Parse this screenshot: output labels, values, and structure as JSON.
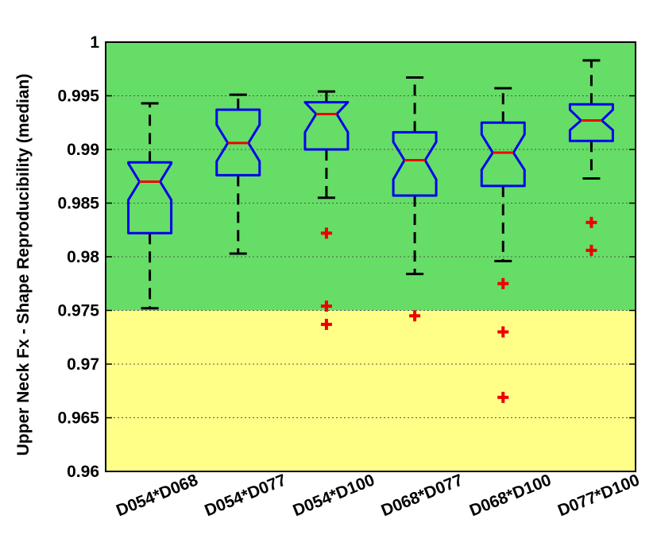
{
  "chart_data": {
    "type": "boxplot",
    "ylabel": "Upper Neck Fx - Shape Reproducibility (median)",
    "ylim": [
      0.96,
      1.0
    ],
    "yticks": [
      "0.96",
      "0.965",
      "0.97",
      "0.975",
      "0.98",
      "0.985",
      "0.99",
      "0.995",
      "1"
    ],
    "ytick_values": [
      0.96,
      0.965,
      0.97,
      0.975,
      0.98,
      0.985,
      0.99,
      0.995,
      1.0
    ],
    "grid": true,
    "notched": true,
    "bands": [
      {
        "from": 0.975,
        "to": 1.0,
        "color": "#66dd66"
      },
      {
        "from": 0.96,
        "to": 0.975,
        "color": "#ffff88"
      }
    ],
    "colors": {
      "box": "#0000ee",
      "median": "#ee0000",
      "whisker": "#000000",
      "outlier": "#ee0000"
    },
    "categories": [
      "D054*D068",
      "D054*D077",
      "D054*D100",
      "D068*D077",
      "D068*D100",
      "D077*D100"
    ],
    "boxes": [
      {
        "whisker_low": 0.9752,
        "q1": 0.9822,
        "median": 0.987,
        "q3": 0.9888,
        "whisker_high": 0.9943,
        "notch_low": 0.9853,
        "notch_high": 0.9887,
        "outliers": []
      },
      {
        "whisker_low": 0.9803,
        "q1": 0.9876,
        "median": 0.9906,
        "q3": 0.9937,
        "whisker_high": 0.9951,
        "notch_low": 0.9889,
        "notch_high": 0.9923,
        "outliers": []
      },
      {
        "whisker_low": 0.9855,
        "q1": 0.99,
        "median": 0.9933,
        "q3": 0.9944,
        "whisker_high": 0.9954,
        "notch_low": 0.9916,
        "notch_high": 0.995,
        "outliers": [
          0.9822,
          0.9754,
          0.9737
        ]
      },
      {
        "whisker_low": 0.9784,
        "q1": 0.9857,
        "median": 0.989,
        "q3": 0.9916,
        "whisker_high": 0.9967,
        "notch_low": 0.9872,
        "notch_high": 0.9907,
        "outliers": [
          0.9745
        ]
      },
      {
        "whisker_low": 0.9796,
        "q1": 0.9866,
        "median": 0.9897,
        "q3": 0.9925,
        "whisker_high": 0.9957,
        "notch_low": 0.9881,
        "notch_high": 0.9914,
        "outliers": [
          0.9775,
          0.973,
          0.9669
        ]
      },
      {
        "whisker_low": 0.9873,
        "q1": 0.9908,
        "median": 0.9927,
        "q3": 0.9942,
        "whisker_high": 0.9983,
        "notch_low": 0.9918,
        "notch_high": 0.9937,
        "outliers": [
          0.9832,
          0.9806
        ]
      }
    ]
  }
}
